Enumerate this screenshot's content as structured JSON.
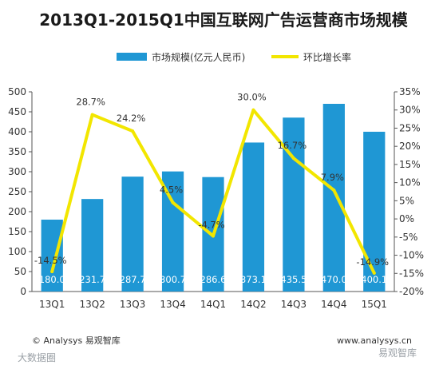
{
  "chart_data": {
    "type": "bar",
    "title": "2013Q1-2015Q1中国互联网广告运营商市场规模",
    "categories": [
      "13Q1",
      "13Q2",
      "13Q3",
      "13Q4",
      "14Q1",
      "14Q2",
      "14Q3",
      "14Q4",
      "15Q1"
    ],
    "series": [
      {
        "name": "市场规模(亿元人民币)",
        "type": "bar",
        "axis": "left",
        "color": "#1f97d4",
        "values": [
          180.0,
          231.7,
          287.7,
          300.7,
          286.6,
          373.1,
          435.5,
          470.0,
          400.1
        ],
        "labels": [
          "180.0",
          "231.7",
          "287.7",
          "300.7",
          "286.6",
          "373.1",
          "435.5",
          "470.0",
          "400.1"
        ]
      },
      {
        "name": "环比增长率",
        "type": "line",
        "axis": "right",
        "color": "#f2e600",
        "values": [
          -14.5,
          28.7,
          24.2,
          4.5,
          -4.7,
          30.0,
          16.7,
          7.9,
          -14.9
        ],
        "labels": [
          "-14.5%",
          "28.7%",
          "24.2%",
          "4.5%",
          "-4.7%",
          "30.0%",
          "16.7%",
          "7.9%",
          "-14.9%"
        ]
      }
    ],
    "y_left": {
      "min": 0,
      "max": 500,
      "step": 50,
      "tick_labels": [
        "0",
        "50",
        "100",
        "150",
        "200",
        "250",
        "300",
        "350",
        "400",
        "450",
        "500"
      ]
    },
    "y_right": {
      "min": -20,
      "max": 35,
      "step": 5,
      "tick_labels": [
        "-20%",
        "-15%",
        "-10%",
        "-5%",
        "0%",
        "5%",
        "10%",
        "15%",
        "20%",
        "25%",
        "30%",
        "35%"
      ]
    },
    "legend_position": "top-center",
    "grid": false
  },
  "footer": {
    "source": "© Analysys 易观智库",
    "url": "www.analysys.cn",
    "watermark_left": "大数据圈",
    "watermark_right": "易观智库"
  }
}
